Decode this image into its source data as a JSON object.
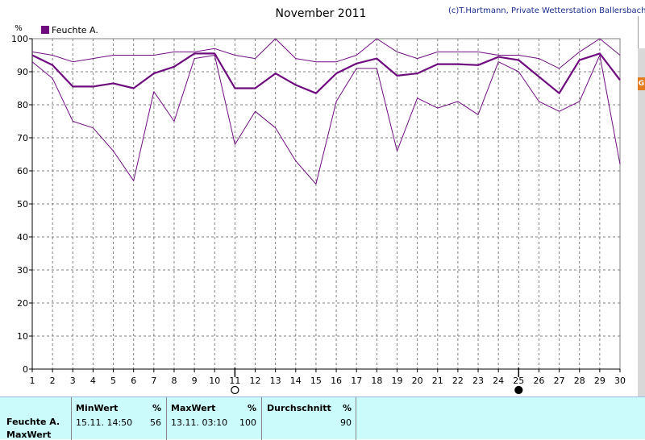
{
  "chart_data": {
    "type": "line",
    "title": "November 2011",
    "credit": "(c)T.Hartmann, Private Wetterstation Ballersbach",
    "unit_label": "%",
    "legend": "Feuchte A.",
    "x": [
      1,
      2,
      3,
      4,
      5,
      6,
      7,
      8,
      9,
      10,
      11,
      12,
      13,
      14,
      15,
      16,
      17,
      18,
      19,
      20,
      21,
      22,
      23,
      24,
      25,
      26,
      27,
      28,
      29,
      30
    ],
    "ylim": [
      0,
      100
    ],
    "yticks": [
      0,
      10,
      20,
      30,
      40,
      50,
      60,
      70,
      80,
      90,
      100
    ],
    "grid": true,
    "colors": {
      "lines": "#6e0c7e",
      "legend_box": "#6e0c7e",
      "grid": "#808080"
    },
    "series": [
      {
        "role": "max",
        "values": [
          96,
          95,
          93,
          94,
          95,
          95,
          95,
          96,
          96,
          97,
          95,
          94,
          100,
          94,
          93,
          93,
          95,
          100,
          96,
          94,
          96,
          96,
          96,
          95,
          95,
          94,
          91,
          96,
          100,
          95
        ]
      },
      {
        "role": "avg",
        "values": [
          95,
          92,
          85.5,
          85.5,
          86.5,
          85,
          89.5,
          91.5,
          95.5,
          95.5,
          85,
          85,
          89.5,
          86,
          83.5,
          89.5,
          92.5,
          94,
          88.8,
          89.5,
          92.3,
          92.3,
          92,
          94.5,
          93.5,
          88.5,
          83.5,
          93.5,
          95.5,
          87.5
        ]
      },
      {
        "role": "min",
        "values": [
          93,
          88,
          75,
          73,
          66,
          57,
          84,
          75,
          94,
          95,
          68,
          78,
          73,
          63,
          56,
          81,
          91,
          91,
          66,
          82,
          79,
          81,
          77,
          93,
          90,
          81,
          78,
          81,
          95,
          62
        ]
      }
    ],
    "moon_phases": [
      {
        "day": 11,
        "icon": "full-moon-icon"
      },
      {
        "day": 25,
        "icon": "new-moon-icon"
      }
    ]
  },
  "stats": {
    "row_labels": [
      "Feuchte A.",
      "MaxWert"
    ],
    "min": {
      "header": "MinWert",
      "unit": "%",
      "datetime": "15.11.  14:50",
      "value": "56"
    },
    "max": {
      "header": "MaxWert",
      "unit": "%",
      "datetime": "13.11.  03:10",
      "value": "100"
    },
    "avg": {
      "header": "Durchschnitt",
      "unit": "%",
      "value": "90"
    }
  },
  "side_badge": "G"
}
